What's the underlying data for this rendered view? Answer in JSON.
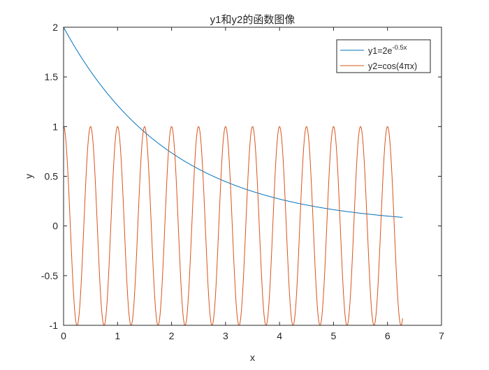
{
  "chart_data": {
    "type": "line",
    "title": "y1和y2的函数图像",
    "xlabel": "x",
    "ylabel": "y",
    "xlim": [
      0,
      7
    ],
    "ylim": [
      -1,
      2
    ],
    "xticks": [
      0,
      1,
      2,
      3,
      4,
      5,
      6,
      7
    ],
    "xtick_labels": [
      "0",
      "1",
      "2",
      "3",
      "4",
      "5",
      "6",
      "7"
    ],
    "yticks": [
      -1,
      -0.5,
      0,
      0.5,
      1,
      1.5,
      2
    ],
    "ytick_labels": [
      "-1",
      "-0.5",
      "0",
      "0.5",
      "1",
      "1.5",
      "2"
    ],
    "grid": false,
    "box": true,
    "legend_position": "top-right",
    "series": [
      {
        "name": "y1=2e-0.5x",
        "legend_base": "y1=2e",
        "legend_sup": "-0.5x",
        "color": "#0072bd",
        "x_range": [
          0,
          6.28
        ],
        "x": [
          0,
          0.5,
          1,
          1.5,
          2,
          2.5,
          3,
          3.5,
          4,
          4.5,
          5,
          5.5,
          6,
          6.28
        ],
        "y": [
          2.0,
          1.558,
          1.213,
          0.945,
          0.736,
          0.573,
          0.446,
          0.348,
          0.271,
          0.211,
          0.164,
          0.128,
          0.1,
          0.087
        ]
      },
      {
        "name": "y2=cos(4πx)",
        "legend_label": "y2=cos(4πx)",
        "color": "#d95319",
        "x_range": [
          0,
          6.28
        ],
        "x": [
          0,
          0.25,
          0.5,
          0.75,
          1,
          1.25,
          1.5,
          1.75,
          2,
          2.25,
          2.5,
          2.75,
          3,
          3.25,
          3.5,
          3.75,
          4,
          4.25,
          4.5,
          4.75,
          5,
          5.25,
          5.5,
          5.75,
          6,
          6.25,
          6.28
        ],
        "y": [
          1,
          -1,
          1,
          -1,
          1,
          -1,
          1,
          -1,
          1,
          -1,
          1,
          -1,
          1,
          -1,
          1,
          -1,
          1,
          -1,
          1,
          -1,
          1,
          -1,
          1,
          -1,
          1,
          -1,
          -0.93
        ]
      }
    ]
  }
}
